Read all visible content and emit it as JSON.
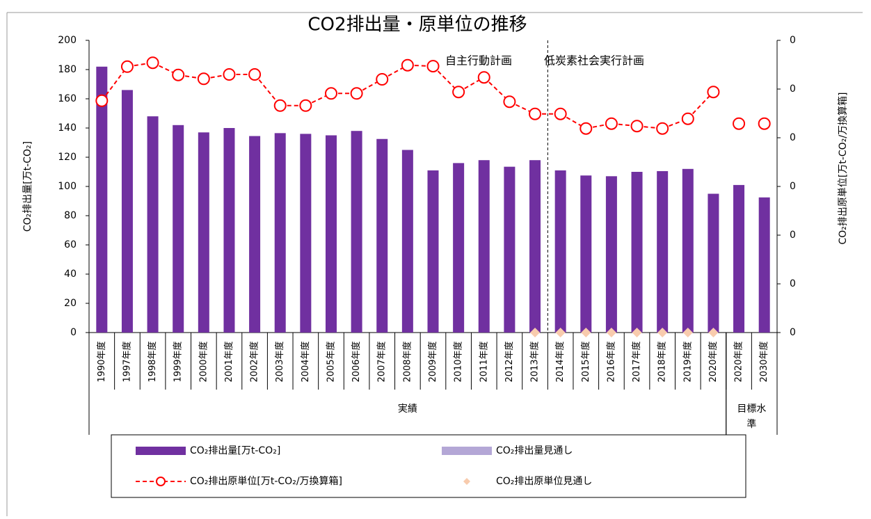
{
  "chart_data": {
    "type": "bar",
    "title": "CO2排出量・原単位の推移",
    "y_label": "CO₂排出量[万t-CO₂]",
    "y2_label": "CO₂排出原単位[万t-CO₂/万換算箱]",
    "annotations": [
      "自主行動計画",
      "低炭素社会実行計画"
    ],
    "groups": [
      {
        "label": "実績",
        "categories": [
          "1990年度",
          "1997年度",
          "1998年度",
          "1999年度",
          "2000年度",
          "2001年度",
          "2002年度",
          "2003年度",
          "2004年度",
          "2005年度",
          "2006年度",
          "2007年度",
          "2008年度",
          "2009年度",
          "2010年度",
          "2011年度",
          "2012年度",
          "2013年度",
          "2014年度",
          "2015年度",
          "2016年度",
          "2017年度",
          "2018年度",
          "2019年度",
          "2020年度"
        ]
      },
      {
        "label": "目標水準",
        "categories": [
          "2020年度",
          "2030年度"
        ]
      }
    ],
    "ylim": [
      0,
      200
    ],
    "yticks": [
      0,
      20,
      40,
      60,
      80,
      100,
      120,
      140,
      160,
      180,
      200
    ],
    "y2lim": [
      0,
      0.06
    ],
    "y2ticks": [
      {
        "value": 0,
        "label": "0"
      },
      {
        "value": 0.01,
        "label": "0"
      },
      {
        "value": 0.02,
        "label": "0"
      },
      {
        "value": 0.03,
        "label": "0"
      },
      {
        "value": 0.04,
        "label": "0"
      },
      {
        "value": 0.05,
        "label": "0"
      },
      {
        "value": 0.06,
        "label": "0"
      }
    ],
    "series": [
      {
        "name": "CO₂排出量[万t-CO₂]",
        "kind": "bar",
        "color": "#7030a0",
        "values": [
          182,
          166,
          148,
          142,
          137,
          140,
          134.5,
          136.5,
          136,
          135,
          138,
          132.5,
          125,
          111,
          116,
          118,
          113.5,
          118,
          111,
          107.5,
          107,
          110,
          110.5,
          112,
          95,
          101,
          92.5
        ]
      },
      {
        "name": "CO₂排出量見通し",
        "kind": "bar",
        "color": "#b4a7d6",
        "values": [
          null,
          null,
          null,
          null,
          null,
          null,
          null,
          null,
          null,
          null,
          null,
          null,
          null,
          null,
          null,
          null,
          null,
          null,
          null,
          null,
          null,
          null,
          null,
          null,
          null,
          null,
          null
        ]
      },
      {
        "name": "CO₂排出原単位[万t-CO₂/万換算箱]",
        "kind": "line",
        "axis": "y2",
        "color": "#ff0000",
        "values": [
          0.0476,
          0.0546,
          0.0554,
          0.0529,
          0.0521,
          0.053,
          0.053,
          0.0466,
          0.0466,
          0.0491,
          0.0491,
          0.052,
          0.0549,
          0.0547,
          0.0494,
          0.0524,
          0.0474,
          0.0449,
          0.0449,
          0.0419,
          0.0429,
          0.0424,
          0.0419,
          0.0439,
          0.0494,
          0.0429,
          0.0429
        ]
      },
      {
        "name": "CO₂排出原単位見通し",
        "kind": "diamond",
        "axis": "y2",
        "color": "#f8cbad",
        "values": [
          null,
          null,
          null,
          null,
          null,
          null,
          null,
          null,
          null,
          null,
          null,
          null,
          null,
          null,
          null,
          null,
          null,
          0,
          0,
          0,
          0,
          0,
          0,
          0,
          0,
          null,
          null
        ]
      }
    ]
  }
}
